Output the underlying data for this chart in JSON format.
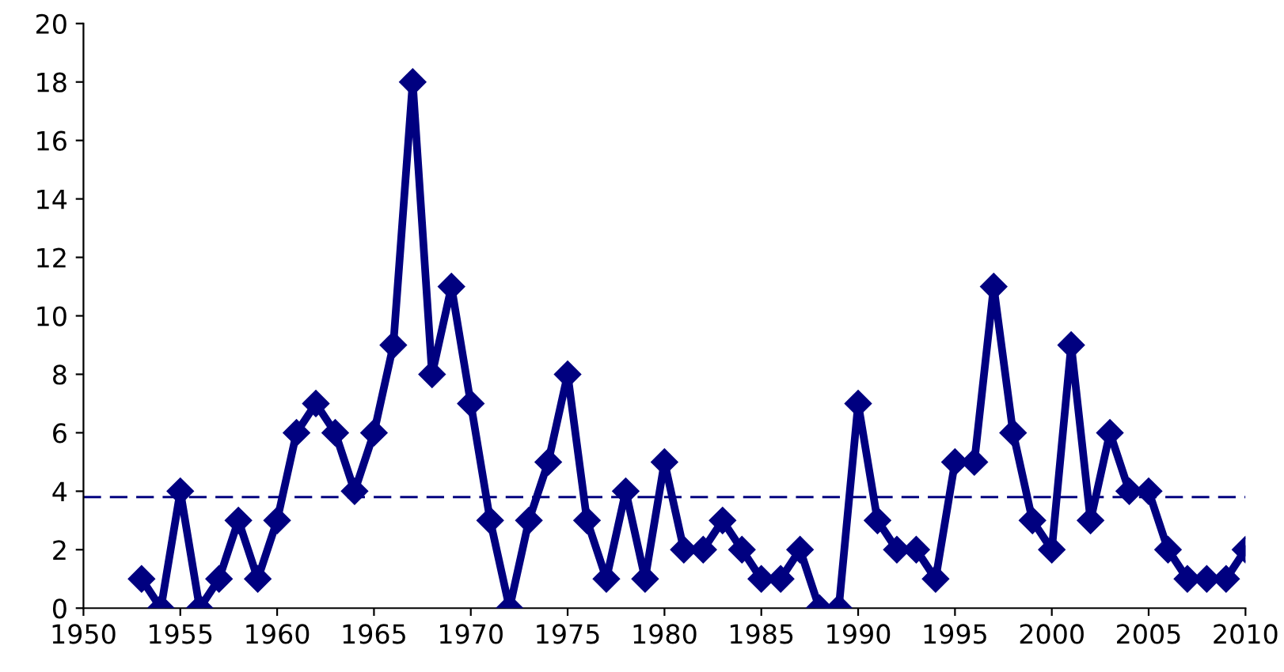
{
  "chart_data": {
    "type": "line",
    "x": [
      1953,
      1954,
      1955,
      1956,
      1957,
      1958,
      1959,
      1960,
      1961,
      1962,
      1963,
      1964,
      1965,
      1966,
      1967,
      1968,
      1969,
      1970,
      1971,
      1972,
      1973,
      1974,
      1975,
      1976,
      1977,
      1978,
      1979,
      1980,
      1981,
      1982,
      1983,
      1984,
      1985,
      1986,
      1987,
      1988,
      1989,
      1990,
      1991,
      1992,
      1993,
      1994,
      1995,
      1996,
      1997,
      1998,
      1999,
      2000,
      2001,
      2002,
      2003,
      2004,
      2005,
      2006,
      2007,
      2008,
      2009,
      2010
    ],
    "series": [
      {
        "color": "#000080",
        "values": [
          1,
          0,
          4,
          0,
          1,
          3,
          1,
          3,
          6,
          7,
          6,
          4,
          6,
          9,
          18,
          8,
          11,
          7,
          3,
          0,
          3,
          5,
          8,
          3,
          1,
          4,
          1,
          5,
          2,
          2,
          3,
          2,
          1,
          1,
          2,
          0,
          0,
          7,
          3,
          2,
          2,
          1,
          5,
          5,
          11,
          6,
          3,
          2,
          9,
          3,
          6,
          4,
          4,
          2,
          1,
          1,
          1,
          2
        ]
      }
    ],
    "xlim": [
      1950,
      2010
    ],
    "xticks": [
      1950,
      1955,
      1960,
      1965,
      1970,
      1975,
      1980,
      1985,
      1990,
      1995,
      2000,
      2005,
      2010
    ],
    "ylim": [
      0,
      20
    ],
    "yticks": [
      0,
      2,
      4,
      6,
      8,
      10,
      12,
      14,
      16,
      18,
      20
    ],
    "ref_lines": [
      {
        "axis": "y",
        "value": 3.8,
        "color": "#000080",
        "line_style": "dashed"
      }
    ],
    "marker": "diamond",
    "line_style": "solid",
    "grid": false,
    "legend": false
  }
}
